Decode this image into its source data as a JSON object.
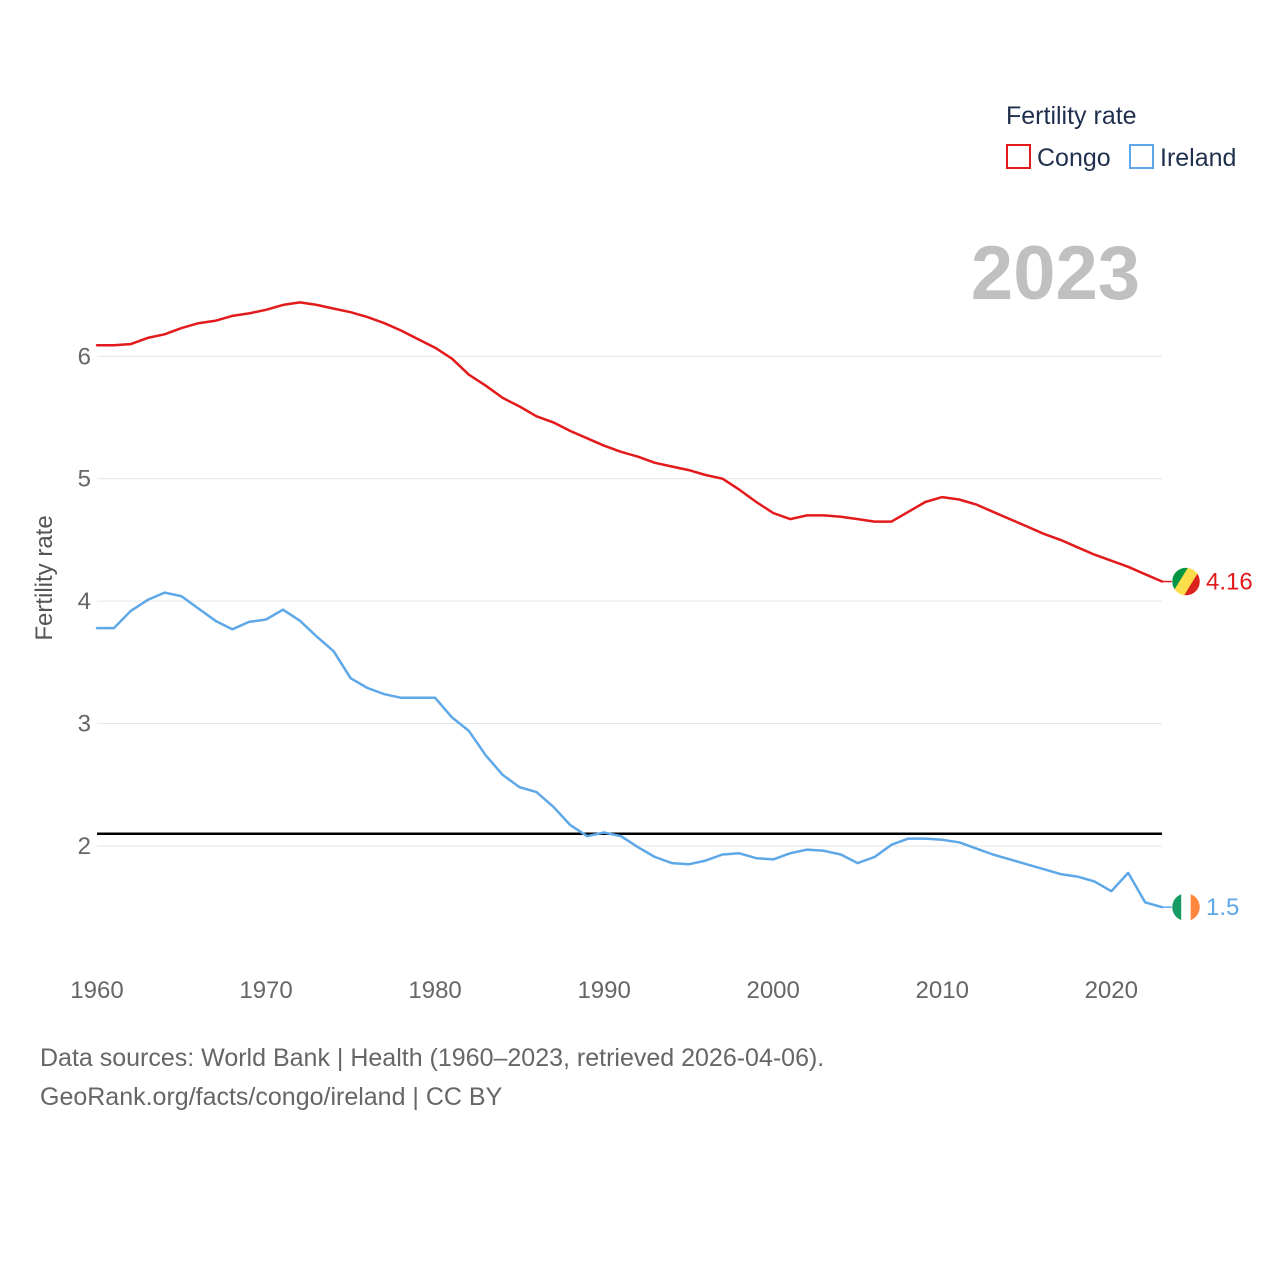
{
  "chart_data": {
    "type": "line",
    "ylabel": "Fertility rate",
    "xlabel": "",
    "legend_title": "Fertility rate",
    "legend_position": "top-right",
    "year_label": "2023",
    "xlim": [
      1960,
      2023
    ],
    "ylim": [
      1.15,
      6.95
    ],
    "x_ticks": [
      "1960",
      "1970",
      "1980",
      "1990",
      "2000",
      "2010",
      "2020"
    ],
    "y_ticks": [
      "2",
      "3",
      "4",
      "5",
      "6"
    ],
    "reference_line": 2.1,
    "x": [
      1960,
      1961,
      1962,
      1963,
      1964,
      1965,
      1966,
      1967,
      1968,
      1969,
      1970,
      1971,
      1972,
      1973,
      1974,
      1975,
      1976,
      1977,
      1978,
      1979,
      1980,
      1981,
      1982,
      1983,
      1984,
      1985,
      1986,
      1987,
      1988,
      1989,
      1990,
      1991,
      1992,
      1993,
      1994,
      1995,
      1996,
      1997,
      1998,
      1999,
      2000,
      2001,
      2002,
      2003,
      2004,
      2005,
      2006,
      2007,
      2008,
      2009,
      2010,
      2011,
      2012,
      2013,
      2014,
      2015,
      2016,
      2017,
      2018,
      2019,
      2020,
      2021,
      2022,
      2023
    ],
    "series": [
      {
        "name": "Congo",
        "color": "#e31a1c",
        "end_label": "4.16",
        "flag": "congo-flag",
        "values": [
          6.09,
          6.09,
          6.1,
          6.15,
          6.18,
          6.23,
          6.27,
          6.29,
          6.33,
          6.35,
          6.38,
          6.42,
          6.44,
          6.42,
          6.39,
          6.36,
          6.32,
          6.27,
          6.21,
          6.14,
          6.07,
          5.98,
          5.85,
          5.76,
          5.66,
          5.59,
          5.51,
          5.46,
          5.39,
          5.33,
          5.27,
          5.22,
          5.18,
          5.13,
          5.1,
          5.07,
          5.03,
          5.0,
          4.91,
          4.81,
          4.72,
          4.67,
          4.7,
          4.7,
          4.69,
          4.67,
          4.65,
          4.65,
          4.73,
          4.81,
          4.85,
          4.83,
          4.79,
          4.73,
          4.67,
          4.61,
          4.55,
          4.5,
          4.44,
          4.38,
          4.33,
          4.28,
          4.22,
          4.16
        ]
      },
      {
        "name": "Ireland",
        "color": "#5ea8e8",
        "end_label": "1.5",
        "flag": "ireland-flag",
        "values": [
          3.78,
          3.78,
          3.92,
          4.01,
          4.07,
          4.04,
          3.94,
          3.84,
          3.77,
          3.83,
          3.85,
          3.93,
          3.84,
          3.71,
          3.59,
          3.37,
          3.29,
          3.24,
          3.21,
          3.21,
          3.21,
          3.05,
          2.94,
          2.74,
          2.58,
          2.48,
          2.44,
          2.32,
          2.17,
          2.08,
          2.11,
          2.08,
          1.99,
          1.91,
          1.86,
          1.85,
          1.88,
          1.93,
          1.94,
          1.9,
          1.89,
          1.94,
          1.97,
          1.96,
          1.93,
          1.86,
          1.91,
          2.01,
          2.06,
          2.06,
          2.05,
          2.03,
          1.98,
          1.93,
          1.89,
          1.85,
          1.81,
          1.77,
          1.75,
          1.71,
          1.63,
          1.78,
          1.54,
          1.5
        ]
      }
    ]
  },
  "footer": {
    "line1": "Data sources: World Bank | Health (1960–2023, retrieved 2026-04-06).",
    "line2": "GeoRank.org/facts/congo/ireland | CC BY"
  }
}
